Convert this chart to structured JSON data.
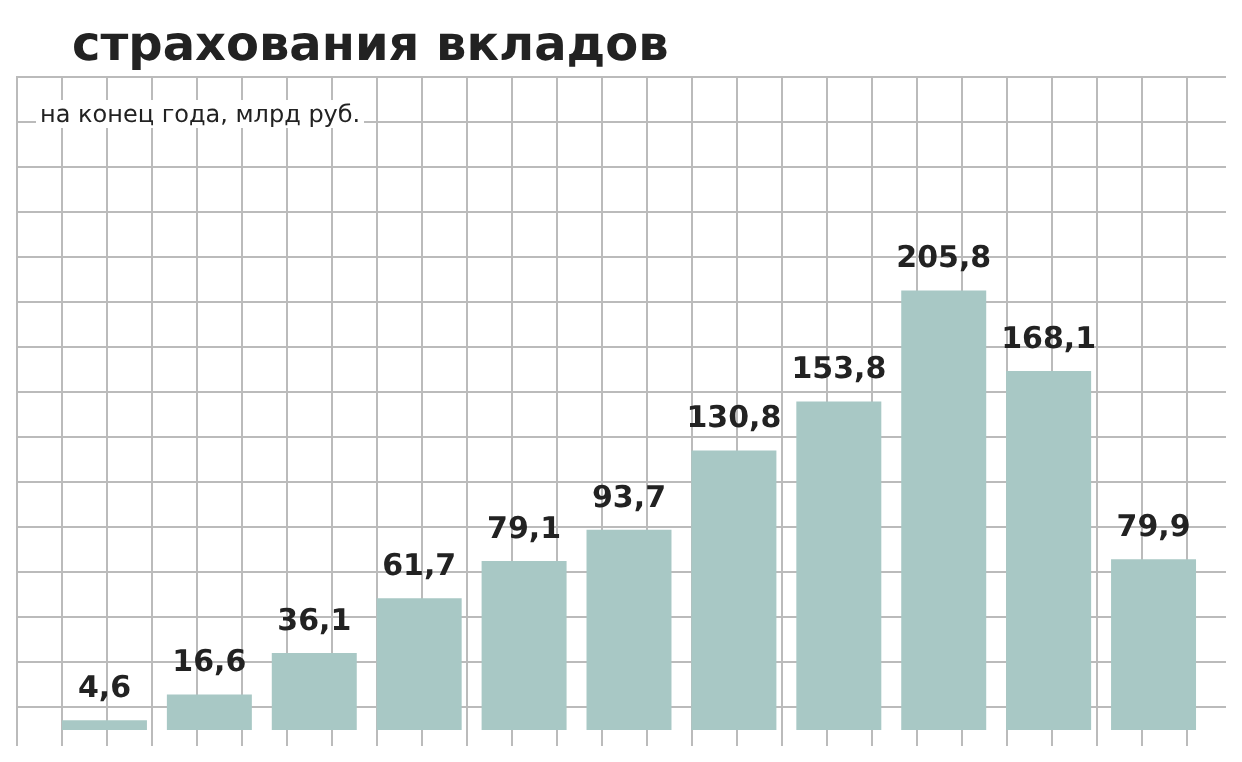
{
  "chart_data": {
    "type": "bar",
    "title": "страхования вкладов",
    "subtitle": "на конец года, млрд руб.",
    "categories": [
      null,
      null,
      null,
      null,
      null,
      null,
      null,
      null,
      null,
      null,
      null
    ],
    "values": [
      4.6,
      16.6,
      36.1,
      61.7,
      79.1,
      93.7,
      130.8,
      153.8,
      205.8,
      168.1,
      79.9
    ],
    "value_labels": [
      "4,6",
      "16,6",
      "36,1",
      "61,7",
      "79,1",
      "93,7",
      "130,8",
      "153,8",
      "205,8",
      "168,1",
      "79,9"
    ],
    "color": "#a8c8c5",
    "tick_labels": false
  }
}
